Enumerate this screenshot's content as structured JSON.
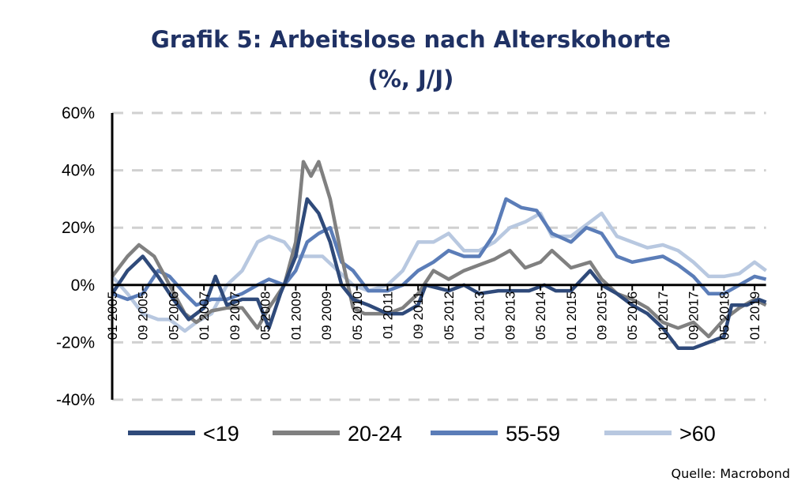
{
  "chart_data": {
    "type": "line",
    "title": "Grafik 5: Arbeitslose nach Alterskohorte",
    "subtitle": "(%, J/J)",
    "xlabel": "",
    "ylabel": "",
    "ylim": [
      -40,
      60
    ],
    "yticks": [
      "60%",
      "40%",
      "20%",
      "0%",
      "-20%",
      "-40%"
    ],
    "ytick_values": [
      60,
      40,
      20,
      0,
      -20,
      -40
    ],
    "xrange": [
      "2005-01",
      "2019-04"
    ],
    "xticks": [
      "01 2005",
      "09 2005",
      "05 2006",
      "01 2007",
      "09 2007",
      "05 2008",
      "01 2009",
      "09 2009",
      "05 2010",
      "01 2011",
      "09 2011",
      "05 2012",
      "01 2013",
      "09 2013",
      "05 2014",
      "01 2015",
      "09 2015",
      "05 2016",
      "01 2017",
      "09 2017",
      "05 2018",
      "01 2019"
    ],
    "grid": true,
    "legend_position": "bottom",
    "source": "Quelle: Macrobond",
    "series": [
      {
        "name": "<19",
        "color": "#2f4a7a",
        "points": [
          [
            "2005-01",
            -3
          ],
          [
            "2005-05",
            5
          ],
          [
            "2005-09",
            10
          ],
          [
            "2006-01",
            3
          ],
          [
            "2006-05",
            -5
          ],
          [
            "2006-09",
            -12
          ],
          [
            "2007-01",
            -8
          ],
          [
            "2007-04",
            3
          ],
          [
            "2007-07",
            -7
          ],
          [
            "2007-11",
            -5
          ],
          [
            "2008-03",
            -5
          ],
          [
            "2008-06",
            -15
          ],
          [
            "2008-09",
            -3
          ],
          [
            "2009-01",
            10
          ],
          [
            "2009-04",
            30
          ],
          [
            "2009-07",
            25
          ],
          [
            "2009-10",
            15
          ],
          [
            "2010-01",
            0
          ],
          [
            "2010-04",
            -5
          ],
          [
            "2010-08",
            -7
          ],
          [
            "2011-01",
            -10
          ],
          [
            "2011-05",
            -10
          ],
          [
            "2011-09",
            -7
          ],
          [
            "2011-11",
            0
          ],
          [
            "2012-05",
            -2
          ],
          [
            "2012-09",
            0
          ],
          [
            "2013-01",
            -3
          ],
          [
            "2013-06",
            -2
          ],
          [
            "2013-10",
            -2
          ],
          [
            "2014-02",
            -2
          ],
          [
            "2014-06",
            0
          ],
          [
            "2014-09",
            -2
          ],
          [
            "2015-01",
            -2
          ],
          [
            "2015-06",
            5
          ],
          [
            "2015-09",
            0
          ],
          [
            "2016-01",
            -3
          ],
          [
            "2016-05",
            -7
          ],
          [
            "2016-09",
            -10
          ],
          [
            "2017-01",
            -15
          ],
          [
            "2017-05",
            -22
          ],
          [
            "2017-09",
            -22
          ],
          [
            "2018-01",
            -20
          ],
          [
            "2018-05",
            -18
          ],
          [
            "2018-07",
            -7
          ],
          [
            "2018-11",
            -7
          ],
          [
            "2019-02",
            -5
          ],
          [
            "2019-04",
            -6
          ]
        ]
      },
      {
        "name": "20-24",
        "color": "#808080",
        "points": [
          [
            "2005-01",
            3
          ],
          [
            "2005-05",
            10
          ],
          [
            "2005-08",
            14
          ],
          [
            "2005-12",
            10
          ],
          [
            "2006-04",
            0
          ],
          [
            "2006-08",
            -10
          ],
          [
            "2006-11",
            -13
          ],
          [
            "2007-03",
            -9
          ],
          [
            "2007-07",
            -8
          ],
          [
            "2007-11",
            -8
          ],
          [
            "2008-03",
            -15
          ],
          [
            "2008-06",
            -8
          ],
          [
            "2008-10",
            0
          ],
          [
            "2009-01",
            15
          ],
          [
            "2009-03",
            43
          ],
          [
            "2009-05",
            38
          ],
          [
            "2009-07",
            43
          ],
          [
            "2009-10",
            30
          ],
          [
            "2010-01",
            10
          ],
          [
            "2010-04",
            -8
          ],
          [
            "2010-07",
            -10
          ],
          [
            "2011-01",
            -10
          ],
          [
            "2011-05",
            -8
          ],
          [
            "2011-09",
            -3
          ],
          [
            "2012-01",
            5
          ],
          [
            "2012-05",
            2
          ],
          [
            "2012-09",
            5
          ],
          [
            "2013-01",
            7
          ],
          [
            "2013-05",
            9
          ],
          [
            "2013-09",
            12
          ],
          [
            "2014-01",
            6
          ],
          [
            "2014-05",
            8
          ],
          [
            "2014-08",
            12
          ],
          [
            "2015-01",
            6
          ],
          [
            "2015-06",
            8
          ],
          [
            "2015-09",
            2
          ],
          [
            "2016-01",
            -3
          ],
          [
            "2016-05",
            -5
          ],
          [
            "2016-09",
            -8
          ],
          [
            "2017-01",
            -13
          ],
          [
            "2017-05",
            -15
          ],
          [
            "2017-09",
            -13
          ],
          [
            "2018-01",
            -18
          ],
          [
            "2018-05",
            -12
          ],
          [
            "2018-09",
            -8
          ],
          [
            "2019-01",
            -5
          ],
          [
            "2019-04",
            -7
          ]
        ]
      },
      {
        "name": "55-59",
        "color": "#5b7db8",
        "points": [
          [
            "2005-01",
            -3
          ],
          [
            "2005-05",
            -5
          ],
          [
            "2005-09",
            -3
          ],
          [
            "2006-01",
            5
          ],
          [
            "2006-04",
            3
          ],
          [
            "2006-08",
            -3
          ],
          [
            "2006-11",
            -7
          ],
          [
            "2007-03",
            -5
          ],
          [
            "2007-07",
            -5
          ],
          [
            "2007-11",
            -3
          ],
          [
            "2008-03",
            0
          ],
          [
            "2008-06",
            2
          ],
          [
            "2008-10",
            0
          ],
          [
            "2009-01",
            5
          ],
          [
            "2009-04",
            15
          ],
          [
            "2009-07",
            18
          ],
          [
            "2009-10",
            20
          ],
          [
            "2010-01",
            8
          ],
          [
            "2010-04",
            5
          ],
          [
            "2010-08",
            -2
          ],
          [
            "2011-01",
            -2
          ],
          [
            "2011-05",
            0
          ],
          [
            "2011-09",
            5
          ],
          [
            "2012-01",
            8
          ],
          [
            "2012-05",
            12
          ],
          [
            "2012-09",
            10
          ],
          [
            "2013-01",
            10
          ],
          [
            "2013-05",
            18
          ],
          [
            "2013-08",
            30
          ],
          [
            "2013-12",
            27
          ],
          [
            "2014-04",
            26
          ],
          [
            "2014-08",
            18
          ],
          [
            "2015-01",
            15
          ],
          [
            "2015-05",
            20
          ],
          [
            "2015-09",
            18
          ],
          [
            "2016-01",
            10
          ],
          [
            "2016-05",
            8
          ],
          [
            "2016-09",
            9
          ],
          [
            "2017-01",
            10
          ],
          [
            "2017-05",
            7
          ],
          [
            "2017-09",
            3
          ],
          [
            "2018-01",
            -3
          ],
          [
            "2018-05",
            -3
          ],
          [
            "2018-09",
            0
          ],
          [
            "2019-01",
            3
          ],
          [
            "2019-04",
            2
          ]
        ]
      },
      {
        "name": ">60",
        "color": "#b8c8e0",
        "points": [
          [
            "2005-01",
            3
          ],
          [
            "2005-05",
            -3
          ],
          [
            "2005-09",
            -10
          ],
          [
            "2006-01",
            -12
          ],
          [
            "2006-04",
            -12
          ],
          [
            "2006-08",
            -16
          ],
          [
            "2006-11",
            -13
          ],
          [
            "2007-03",
            -10
          ],
          [
            "2007-07",
            0
          ],
          [
            "2007-11",
            5
          ],
          [
            "2008-03",
            15
          ],
          [
            "2008-06",
            17
          ],
          [
            "2008-10",
            15
          ],
          [
            "2009-01",
            10
          ],
          [
            "2009-04",
            10
          ],
          [
            "2009-08",
            10
          ],
          [
            "2009-12",
            5
          ],
          [
            "2010-04",
            0
          ],
          [
            "2010-08",
            -2
          ],
          [
            "2011-01",
            0
          ],
          [
            "2011-05",
            5
          ],
          [
            "2011-09",
            15
          ],
          [
            "2012-01",
            15
          ],
          [
            "2012-05",
            18
          ],
          [
            "2012-09",
            12
          ],
          [
            "2013-01",
            12
          ],
          [
            "2013-05",
            15
          ],
          [
            "2013-09",
            20
          ],
          [
            "2014-01",
            22
          ],
          [
            "2014-05",
            25
          ],
          [
            "2014-08",
            17
          ],
          [
            "2015-01",
            17
          ],
          [
            "2015-06",
            22
          ],
          [
            "2015-09",
            25
          ],
          [
            "2016-01",
            17
          ],
          [
            "2016-05",
            15
          ],
          [
            "2016-09",
            13
          ],
          [
            "2017-01",
            14
          ],
          [
            "2017-05",
            12
          ],
          [
            "2017-09",
            8
          ],
          [
            "2018-01",
            3
          ],
          [
            "2018-05",
            3
          ],
          [
            "2018-09",
            4
          ],
          [
            "2019-01",
            8
          ],
          [
            "2019-04",
            5
          ]
        ]
      }
    ]
  }
}
